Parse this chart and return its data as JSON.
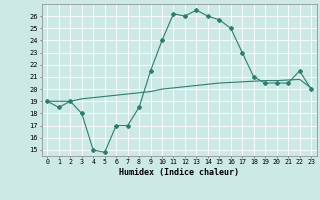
{
  "line1_x": [
    0,
    1,
    2,
    3,
    4,
    5,
    6,
    7,
    8,
    9,
    10,
    11,
    12,
    13,
    14,
    15,
    16,
    17,
    18,
    19,
    20,
    21,
    22,
    23
  ],
  "line1_y": [
    19,
    18.5,
    19,
    18,
    15,
    14.8,
    17,
    17,
    18.5,
    21.5,
    24,
    26.2,
    26,
    26.5,
    26,
    25.7,
    25,
    23,
    21,
    20.5,
    20.5,
    20.5,
    21.5,
    20
  ],
  "line2_x": [
    0,
    1,
    2,
    3,
    4,
    5,
    6,
    7,
    8,
    9,
    10,
    11,
    12,
    13,
    14,
    15,
    16,
    17,
    18,
    19,
    20,
    21,
    22,
    23
  ],
  "line2_y": [
    19,
    19,
    19,
    19.2,
    19.3,
    19.4,
    19.5,
    19.6,
    19.7,
    19.8,
    20.0,
    20.1,
    20.2,
    20.3,
    20.4,
    20.5,
    20.55,
    20.6,
    20.65,
    20.7,
    20.7,
    20.75,
    20.8,
    20.1
  ],
  "line_color": "#2e7d6e",
  "marker": "D",
  "marker_size1": 2.5,
  "marker_size2": 0,
  "xlabel": "Humidex (Indice chaleur)",
  "xlim": [
    -0.5,
    23.5
  ],
  "ylim": [
    14.5,
    27
  ],
  "yticks": [
    15,
    16,
    17,
    18,
    19,
    20,
    21,
    22,
    23,
    24,
    25,
    26
  ],
  "xticks": [
    0,
    1,
    2,
    3,
    4,
    5,
    6,
    7,
    8,
    9,
    10,
    11,
    12,
    13,
    14,
    15,
    16,
    17,
    18,
    19,
    20,
    21,
    22,
    23
  ],
  "bg_color": "#cce9e6",
  "grid_color": "#b8d8d5"
}
